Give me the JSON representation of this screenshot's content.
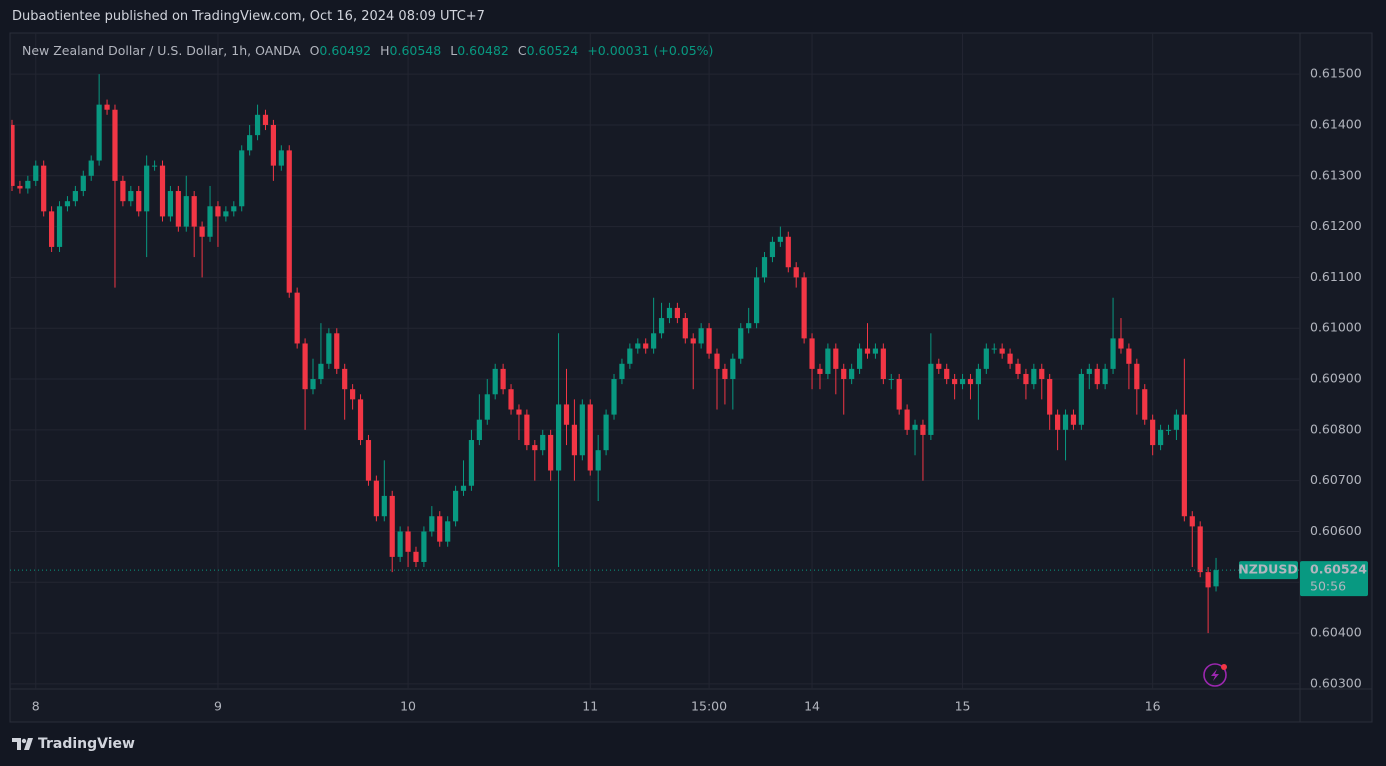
{
  "header": {
    "publisher": "Dubaotientee published on TradingView.com, Oct 16, 2024 08:09 UTC+7"
  },
  "chart_data": {
    "type": "candlestick",
    "title": "New Zealand Dollar / U.S. Dollar, 1h, OANDA",
    "ohlc_letters": [
      "O",
      "H",
      "L",
      "C"
    ],
    "ohlc_values": [
      "0.60492",
      "0.60548",
      "0.60482",
      "0.60524"
    ],
    "change": "+0.00031 (+0.05%)",
    "symbol": "NZDUSD",
    "countdown": "50:56",
    "up_color": "#089981",
    "down_color": "#f23645",
    "grid": true,
    "xlim": [
      0,
      162.6
    ],
    "xticks": [
      {
        "value": 3,
        "label": "8"
      },
      {
        "value": 26,
        "label": "9"
      },
      {
        "value": 50,
        "label": "10"
      },
      {
        "value": 73,
        "label": "11"
      },
      {
        "value": 88,
        "label": "15:00"
      },
      {
        "value": 101,
        "label": "14"
      },
      {
        "value": 120,
        "label": "15"
      },
      {
        "value": 144,
        "label": "16"
      }
    ],
    "ylim": [
      0.6029,
      0.61581
    ],
    "yticks": [
      {
        "value": 0.603,
        "label": "0.60300"
      },
      {
        "value": 0.604,
        "label": "0.60400"
      },
      {
        "value": 0.605,
        "label": "0.60500"
      },
      {
        "value": 0.606,
        "label": "0.60600"
      },
      {
        "value": 0.607,
        "label": "0.60700"
      },
      {
        "value": 0.608,
        "label": "0.60800"
      },
      {
        "value": 0.609,
        "label": "0.60900"
      },
      {
        "value": 0.61,
        "label": "0.61000"
      },
      {
        "value": 0.611,
        "label": "0.61100"
      },
      {
        "value": 0.612,
        "label": "0.61200"
      },
      {
        "value": 0.613,
        "label": "0.61300"
      },
      {
        "value": 0.614,
        "label": "0.61400"
      },
      {
        "value": 0.615,
        "label": "0.61500"
      }
    ],
    "open": [
      0.614,
      0.6128,
      0.61275,
      0.6129,
      0.6132,
      0.6123,
      0.6116,
      0.6124,
      0.6125,
      0.6127,
      0.613,
      0.6133,
      0.6144,
      0.6143,
      0.6129,
      0.6125,
      0.6127,
      0.6123,
      0.6132,
      0.6132,
      0.6122,
      0.6127,
      0.612,
      0.6126,
      0.612,
      0.6118,
      0.6124,
      0.6122,
      0.6123,
      0.6124,
      0.6135,
      0.6138,
      0.6142,
      0.614,
      0.6132,
      0.6135,
      0.6107,
      0.6097,
      0.6088,
      0.609,
      0.6093,
      0.6099,
      0.6092,
      0.6088,
      0.6086,
      0.6078,
      0.607,
      0.6063,
      0.6067,
      0.6055,
      0.606,
      0.6056,
      0.6054,
      0.606,
      0.6063,
      0.6058,
      0.6062,
      0.6068,
      0.6069,
      0.6078,
      0.6082,
      0.6087,
      0.6092,
      0.6088,
      0.6084,
      0.6083,
      0.6077,
      0.6076,
      0.6079,
      0.6072,
      0.6085,
      0.6081,
      0.6075,
      0.6085,
      0.6072,
      0.6076,
      0.6083,
      0.609,
      0.6093,
      0.6096,
      0.6097,
      0.6096,
      0.6099,
      0.6102,
      0.6104,
      0.6102,
      0.6098,
      0.6097,
      0.61,
      0.6095,
      0.6092,
      0.609,
      0.6094,
      0.61,
      0.6101,
      0.611,
      0.6114,
      0.6117,
      0.6118,
      0.6112,
      0.611,
      0.6098,
      0.6092,
      0.6091,
      0.6096,
      0.6092,
      0.609,
      0.6092,
      0.6096,
      0.6095,
      0.6096,
      0.609,
      0.609,
      0.6084,
      0.608,
      0.6081,
      0.6079,
      0.6093,
      0.6092,
      0.609,
      0.6089,
      0.609,
      0.6089,
      0.6092,
      0.6096,
      0.6096,
      0.6095,
      0.6093,
      0.6091,
      0.6089,
      0.6092,
      0.609,
      0.6083,
      0.608,
      0.6083,
      0.6081,
      0.6091,
      0.6092,
      0.6089,
      0.6092,
      0.6098,
      0.6096,
      0.6093,
      0.6088,
      0.6082,
      0.6077,
      0.608,
      0.608,
      0.6083,
      0.6063,
      0.6061,
      0.6052,
      0.60492
    ],
    "high": [
      0.6141,
      0.6129,
      0.613,
      0.6133,
      0.6133,
      0.6124,
      0.6125,
      0.6126,
      0.6128,
      0.6131,
      0.6134,
      0.615,
      0.6145,
      0.6144,
      0.613,
      0.6128,
      0.6128,
      0.6134,
      0.6133,
      0.6133,
      0.6128,
      0.6128,
      0.613,
      0.6127,
      0.6121,
      0.6128,
      0.6125,
      0.6124,
      0.6125,
      0.6136,
      0.614,
      0.6144,
      0.6143,
      0.6141,
      0.6136,
      0.6136,
      0.6108,
      0.6098,
      0.6094,
      0.6101,
      0.61,
      0.61,
      0.6093,
      0.6089,
      0.6087,
      0.6079,
      0.6071,
      0.6074,
      0.6068,
      0.6061,
      0.6061,
      0.6057,
      0.6061,
      0.6065,
      0.6064,
      0.6063,
      0.6069,
      0.6074,
      0.608,
      0.6087,
      0.609,
      0.6093,
      0.6093,
      0.6089,
      0.6085,
      0.6084,
      0.6078,
      0.608,
      0.608,
      0.6099,
      0.6092,
      0.6086,
      0.6086,
      0.6086,
      0.6079,
      0.6084,
      0.6091,
      0.6094,
      0.6097,
      0.6098,
      0.6098,
      0.6106,
      0.6105,
      0.6105,
      0.6105,
      0.6103,
      0.6099,
      0.6101,
      0.6101,
      0.6096,
      0.6093,
      0.6095,
      0.6101,
      0.6104,
      0.6112,
      0.6115,
      0.6118,
      0.612,
      0.6119,
      0.6113,
      0.6111,
      0.6099,
      0.6093,
      0.6097,
      0.6097,
      0.6093,
      0.6093,
      0.6097,
      0.6101,
      0.6097,
      0.6097,
      0.6091,
      0.6091,
      0.6085,
      0.6082,
      0.6082,
      0.6099,
      0.6094,
      0.6093,
      0.6091,
      0.6091,
      0.6091,
      0.6093,
      0.6097,
      0.6097,
      0.6097,
      0.6096,
      0.6094,
      0.6092,
      0.6093,
      0.6093,
      0.6091,
      0.6084,
      0.6084,
      0.6084,
      0.6092,
      0.6093,
      0.6093,
      0.6093,
      0.6106,
      0.6102,
      0.6097,
      0.6094,
      0.6089,
      0.6083,
      0.6081,
      0.6081,
      0.6084,
      0.6094,
      0.6064,
      0.6062,
      0.6053,
      0.60548
    ],
    "low": [
      0.6127,
      0.61265,
      0.61265,
      0.6128,
      0.6122,
      0.6115,
      0.6115,
      0.6123,
      0.6124,
      0.6126,
      0.6129,
      0.6132,
      0.6142,
      0.6108,
      0.6124,
      0.6124,
      0.6122,
      0.6114,
      0.6131,
      0.6121,
      0.6121,
      0.6119,
      0.6119,
      0.6114,
      0.611,
      0.6117,
      0.6116,
      0.6121,
      0.6122,
      0.6123,
      0.6134,
      0.6137,
      0.6139,
      0.6129,
      0.6131,
      0.6106,
      0.6096,
      0.608,
      0.6087,
      0.6089,
      0.6092,
      0.6091,
      0.6082,
      0.6084,
      0.6077,
      0.6069,
      0.6062,
      0.6062,
      0.6052,
      0.6054,
      0.6053,
      0.6053,
      0.6053,
      0.6059,
      0.6057,
      0.6057,
      0.6061,
      0.6067,
      0.6068,
      0.6077,
      0.6081,
      0.6086,
      0.6087,
      0.6083,
      0.6078,
      0.6076,
      0.607,
      0.6075,
      0.607,
      0.6053,
      0.6077,
      0.607,
      0.6074,
      0.6071,
      0.6066,
      0.6075,
      0.6082,
      0.6089,
      0.6092,
      0.6095,
      0.6095,
      0.6095,
      0.6098,
      0.6101,
      0.6101,
      0.6097,
      0.6088,
      0.6096,
      0.6094,
      0.6084,
      0.6085,
      0.6084,
      0.6093,
      0.6099,
      0.61,
      0.6109,
      0.6113,
      0.6116,
      0.6111,
      0.6108,
      0.6097,
      0.6088,
      0.6088,
      0.609,
      0.6087,
      0.6083,
      0.6089,
      0.6091,
      0.6094,
      0.6094,
      0.6089,
      0.6088,
      0.6083,
      0.6079,
      0.6075,
      0.607,
      0.6078,
      0.6091,
      0.6089,
      0.6086,
      0.6088,
      0.6086,
      0.6082,
      0.6091,
      0.6095,
      0.6094,
      0.6092,
      0.609,
      0.6086,
      0.6088,
      0.6086,
      0.608,
      0.6076,
      0.6074,
      0.608,
      0.608,
      0.6088,
      0.6088,
      0.6088,
      0.6091,
      0.6095,
      0.6088,
      0.6083,
      0.6081,
      0.6075,
      0.6076,
      0.6079,
      0.6078,
      0.6062,
      0.6053,
      0.6051,
      0.604,
      0.60482
    ],
    "close": [
      0.6128,
      0.61275,
      0.6129,
      0.6132,
      0.6123,
      0.6116,
      0.6124,
      0.6125,
      0.6127,
      0.613,
      0.6133,
      0.6144,
      0.6143,
      0.6129,
      0.6125,
      0.6127,
      0.6123,
      0.6132,
      0.6132,
      0.6122,
      0.6127,
      0.612,
      0.6126,
      0.612,
      0.6118,
      0.6124,
      0.6122,
      0.6123,
      0.6124,
      0.6135,
      0.6138,
      0.6142,
      0.614,
      0.6132,
      0.6135,
      0.6107,
      0.6097,
      0.6088,
      0.609,
      0.6093,
      0.6099,
      0.6092,
      0.6088,
      0.6086,
      0.6078,
      0.607,
      0.6063,
      0.6067,
      0.6055,
      0.606,
      0.6056,
      0.6054,
      0.606,
      0.6063,
      0.6058,
      0.6062,
      0.6068,
      0.6069,
      0.6078,
      0.6082,
      0.6087,
      0.6092,
      0.6088,
      0.6084,
      0.6083,
      0.6077,
      0.6076,
      0.6079,
      0.6072,
      0.6085,
      0.6081,
      0.6075,
      0.6085,
      0.6072,
      0.6076,
      0.6083,
      0.609,
      0.6093,
      0.6096,
      0.6097,
      0.6096,
      0.6099,
      0.6102,
      0.6104,
      0.6102,
      0.6098,
      0.6097,
      0.61,
      0.6095,
      0.6092,
      0.609,
      0.6094,
      0.61,
      0.6101,
      0.611,
      0.6114,
      0.6117,
      0.6118,
      0.6112,
      0.611,
      0.6098,
      0.6092,
      0.6091,
      0.6096,
      0.6092,
      0.609,
      0.6092,
      0.6096,
      0.6095,
      0.6096,
      0.609,
      0.609,
      0.6084,
      0.608,
      0.6081,
      0.6079,
      0.6093,
      0.6092,
      0.609,
      0.6089,
      0.609,
      0.6089,
      0.6092,
      0.6096,
      0.6096,
      0.6095,
      0.6093,
      0.6091,
      0.6089,
      0.6092,
      0.609,
      0.6083,
      0.608,
      0.6083,
      0.6081,
      0.6091,
      0.6092,
      0.6089,
      0.6092,
      0.6098,
      0.6096,
      0.6093,
      0.6088,
      0.6082,
      0.6077,
      0.608,
      0.608,
      0.6083,
      0.6063,
      0.6061,
      0.6052,
      0.6049,
      0.60524
    ]
  },
  "footer": {
    "brand": "TradingView"
  }
}
